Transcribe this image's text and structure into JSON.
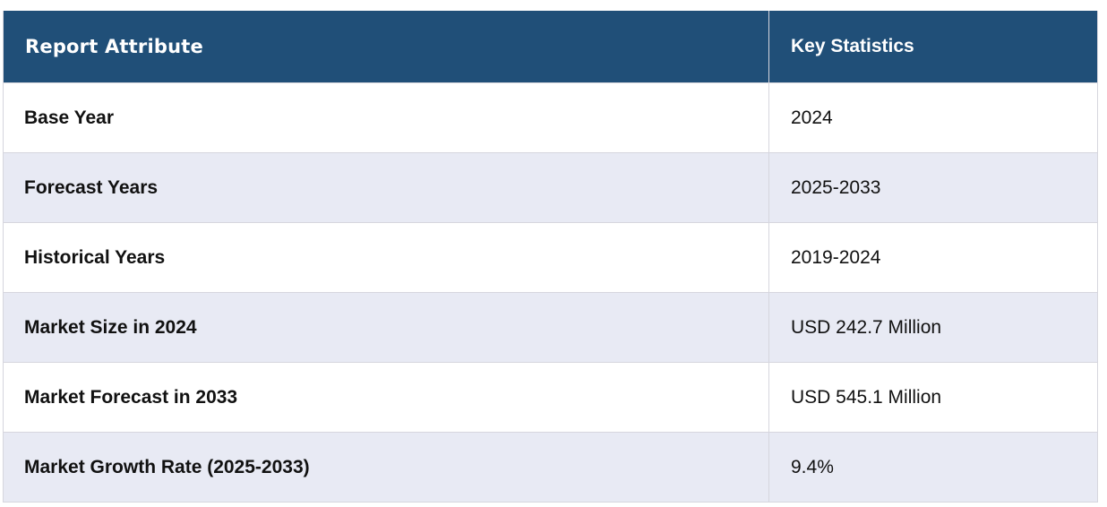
{
  "table": {
    "header": {
      "attribute": "Report Attribute",
      "statistics": "Key Statistics"
    },
    "rows": [
      {
        "attribute": "Base Year",
        "value": "2024"
      },
      {
        "attribute": "Forecast Years",
        "value": "2025-2033"
      },
      {
        "attribute": "Historical Years",
        "value": "2019-2024"
      },
      {
        "attribute": "Market Size in 2024",
        "value": "USD 242.7 Million"
      },
      {
        "attribute": "Market Forecast in 2033",
        "value": "USD 545.1 Million"
      },
      {
        "attribute": "Market Growth Rate (2025-2033)",
        "value": "9.4%"
      }
    ]
  },
  "colors": {
    "header_bg": "#204f78",
    "header_text": "#ffffff",
    "stripe_bg": "#e8eaf4",
    "border": "#d6d6de"
  }
}
